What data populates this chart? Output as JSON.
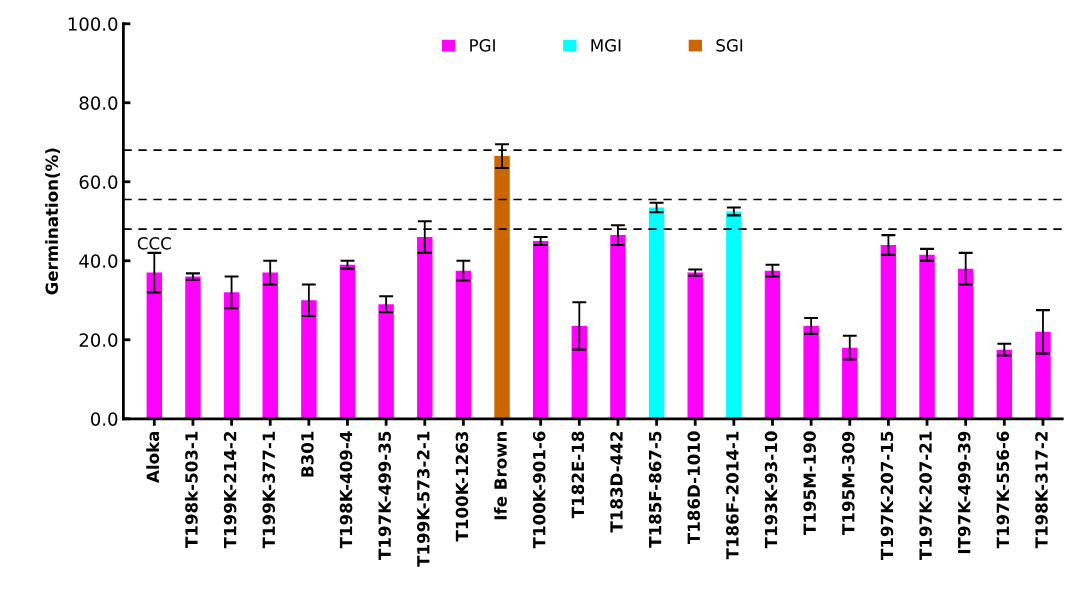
{
  "chart_data": {
    "type": "bar",
    "ylabel": "Germination(%)",
    "categories": [
      "Aloka",
      "T198k-503-1",
      "T199K-214-2",
      "T199K-377-1",
      "B301",
      "T198K-409-4",
      "T197K-499-35",
      "T199K-573-2-1",
      "T100K-1263",
      "Ife Brown",
      "T100K-901-6",
      "T182E-18",
      "T183D-442",
      "T185F-867-5",
      "T186D-1010",
      "T186F-2014-1",
      "T193K-93-10",
      "T195M-190",
      "T195M-309",
      "T197K-207-15",
      "T197K-207-21",
      "IT97K-499-39",
      "T197K-556-6",
      "T198K-317-2"
    ],
    "series": [
      {
        "name": "PGI",
        "color": "#ff00ff",
        "values": [
          37,
          36,
          32,
          37,
          30,
          39,
          29,
          46,
          37.5,
          null,
          45,
          23.5,
          46.5,
          null,
          37,
          null,
          37.5,
          23.5,
          18,
          44,
          41.5,
          38,
          17.5,
          22
        ],
        "errors": [
          5,
          0.8,
          4,
          3,
          4,
          1,
          2,
          4,
          2.5,
          null,
          1,
          6,
          2.5,
          null,
          0.8,
          null,
          1.5,
          2,
          3,
          2.5,
          1.5,
          4,
          1.5,
          5.5
        ]
      },
      {
        "name": "MGI",
        "color": "#00ffff",
        "values": [
          null,
          null,
          null,
          null,
          null,
          null,
          null,
          null,
          null,
          null,
          null,
          null,
          null,
          53.5,
          null,
          52.5,
          null,
          null,
          null,
          null,
          null,
          null,
          null,
          null
        ],
        "errors": [
          null,
          null,
          null,
          null,
          null,
          null,
          null,
          null,
          null,
          null,
          null,
          null,
          null,
          1.2,
          null,
          1,
          null,
          null,
          null,
          null,
          null,
          null,
          null,
          null
        ]
      },
      {
        "name": "SGI",
        "color": "#cc6600",
        "values": [
          null,
          null,
          null,
          null,
          null,
          null,
          null,
          null,
          null,
          66.5,
          null,
          null,
          null,
          null,
          null,
          null,
          null,
          null,
          null,
          null,
          null,
          null,
          null,
          null
        ],
        "errors": [
          null,
          null,
          null,
          null,
          null,
          null,
          null,
          null,
          null,
          3,
          null,
          null,
          null,
          null,
          null,
          null,
          null,
          null,
          null,
          null,
          null,
          null,
          null,
          null
        ]
      }
    ],
    "ylim": [
      0,
      100
    ],
    "yticks": [
      {
        "value": 0,
        "label": "0.0"
      },
      {
        "value": 20,
        "label": "20.0"
      },
      {
        "value": 40,
        "label": "40.0"
      },
      {
        "value": 60,
        "label": "60.0"
      },
      {
        "value": 80,
        "label": "80.0"
      },
      {
        "value": 100,
        "label": "100.0"
      }
    ],
    "ref_lines": [
      {
        "axis": "y",
        "value": 68,
        "color": "#000000",
        "line_style": "dashed"
      },
      {
        "axis": "y",
        "value": 55.5,
        "color": "#000000",
        "line_style": "dashed"
      },
      {
        "axis": "y",
        "value": 48,
        "color": "#000000",
        "line_style": "dashed"
      }
    ],
    "annotations": [
      {
        "text": "CCC",
        "x": "Aloka",
        "y": 42
      }
    ],
    "legend": "top",
    "grid": false
  }
}
